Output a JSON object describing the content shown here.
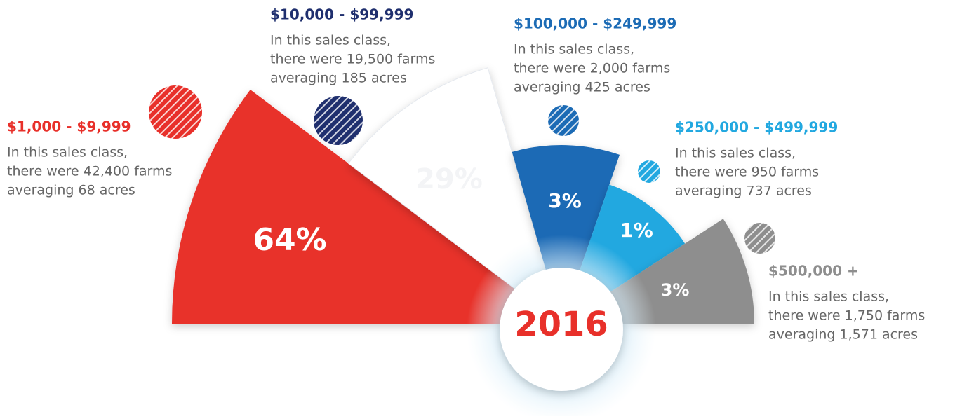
{
  "chart_data": {
    "type": "rose",
    "center_label": "2016",
    "series": [
      {
        "name": "$1,000 - $9,999",
        "color": "#e8302a",
        "values": [
          64
        ],
        "value_labels": [
          "64%"
        ],
        "description": [
          "In this sales class,",
          "there were 42,400 farms",
          "averaging 68 acres"
        ]
      },
      {
        "name": "$10,000 - $99,999",
        "color": "#1f2f6e",
        "values": [
          29
        ],
        "value_labels": [
          "29%"
        ],
        "description": [
          "In this sales class,",
          "there were 19,500 farms",
          "averaging 185 acres"
        ]
      },
      {
        "name": "$100,000 - $249,999",
        "color": "#1c6bb5",
        "values": [
          3
        ],
        "value_labels": [
          "3%"
        ],
        "description": [
          "In this sales class,",
          "there were 2,000 farms",
          "averaging 425 acres"
        ]
      },
      {
        "name": "$250,000 - $499,999",
        "color": "#22a8e0",
        "values": [
          1
        ],
        "value_labels": [
          "1%"
        ],
        "description": [
          "In this sales class,",
          "there were 950 farms",
          "averaging 737 acres"
        ]
      },
      {
        "name": "$500,000 +",
        "color": "#8e8e8e",
        "values": [
          3
        ],
        "value_labels": [
          "3%"
        ],
        "description": [
          "In this sales class,",
          "there were 1,750 farms",
          "averaging 1,571 acres"
        ]
      }
    ]
  }
}
